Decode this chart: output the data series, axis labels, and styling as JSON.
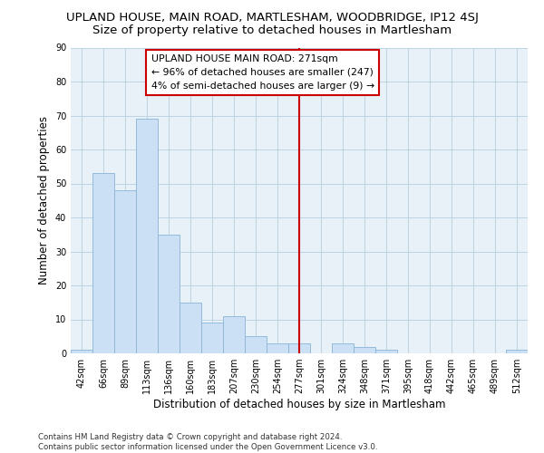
{
  "title": "UPLAND HOUSE, MAIN ROAD, MARTLESHAM, WOODBRIDGE, IP12 4SJ",
  "subtitle": "Size of property relative to detached houses in Martlesham",
  "xlabel": "Distribution of detached houses by size in Martlesham",
  "ylabel": "Number of detached properties",
  "categories": [
    "42sqm",
    "66sqm",
    "89sqm",
    "113sqm",
    "136sqm",
    "160sqm",
    "183sqm",
    "207sqm",
    "230sqm",
    "254sqm",
    "277sqm",
    "301sqm",
    "324sqm",
    "348sqm",
    "371sqm",
    "395sqm",
    "418sqm",
    "442sqm",
    "465sqm",
    "489sqm",
    "512sqm"
  ],
  "values": [
    1,
    53,
    48,
    69,
    35,
    15,
    9,
    11,
    5,
    3,
    3,
    0,
    3,
    2,
    1,
    0,
    0,
    0,
    0,
    0,
    1
  ],
  "bar_color": "#cce0f5",
  "bar_edge_color": "#8ab4d8",
  "highlight_idx": 10,
  "highlight_line_color": "#cc0000",
  "annotation_text": "UPLAND HOUSE MAIN ROAD: 271sqm\n← 96% of detached houses are smaller (247)\n4% of semi-detached houses are larger (9) →",
  "annotation_box_color": "#ffffff",
  "annotation_box_edge": "#cc0000",
  "ylim": [
    0,
    90
  ],
  "yticks": [
    0,
    10,
    20,
    30,
    40,
    50,
    60,
    70,
    80,
    90
  ],
  "footer": "Contains HM Land Registry data © Crown copyright and database right 2024.\nContains public sector information licensed under the Open Government Licence v3.0.",
  "bg_color": "#e8f0f8",
  "title_fontsize": 9.5,
  "subtitle_fontsize": 9.5,
  "tick_fontsize": 7,
  "label_fontsize": 8.5,
  "footer_fontsize": 6.2
}
